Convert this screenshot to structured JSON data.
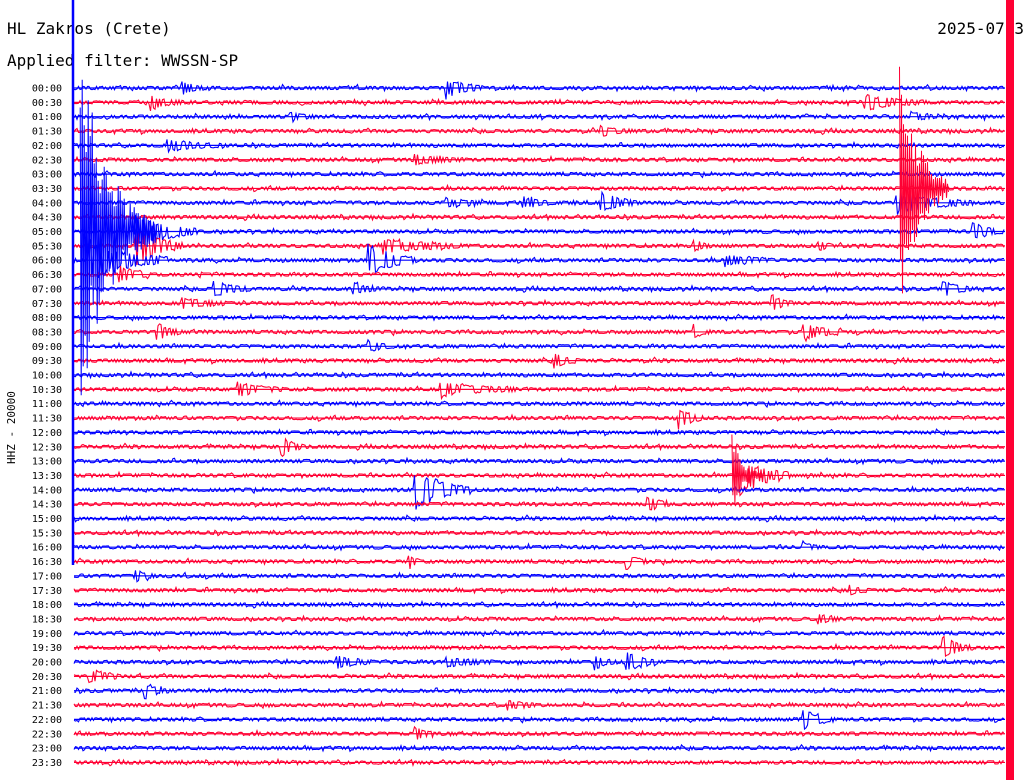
{
  "header": {
    "station": "HL Zakros (Crete)",
    "date": "2025-07-3",
    "filter": "Applied filter: WWSSN-SP"
  },
  "colors": {
    "trace_a": "#0000ff",
    "trace_b": "#ff0033",
    "text": "#000000",
    "background": "#ffffff"
  },
  "chart_data": {
    "type": "line",
    "title": "HL Zakros (Crete)",
    "xlabel": "",
    "ylabel": "HHZ - 20000",
    "grid": false,
    "legend": "none",
    "row_labels": [
      "00:00",
      "00:30",
      "01:00",
      "01:30",
      "02:00",
      "02:30",
      "03:00",
      "03:30",
      "04:00",
      "04:30",
      "05:00",
      "05:30",
      "06:00",
      "06:30",
      "07:00",
      "07:30",
      "08:00",
      "08:30",
      "09:00",
      "09:30",
      "10:00",
      "10:30",
      "11:00",
      "11:30",
      "12:00",
      "12:30",
      "13:00",
      "13:30",
      "14:00",
      "14:30",
      "15:00",
      "15:30",
      "16:00",
      "16:30",
      "17:00",
      "17:30",
      "18:00",
      "18:30",
      "19:00",
      "19:30",
      "20:00",
      "20:30",
      "21:00",
      "21:30",
      "22:00",
      "22:30",
      "23:00",
      "23:30"
    ],
    "row_colors": [
      "blue",
      "red"
    ],
    "minutes_per_row": 30,
    "events": [
      {
        "row": 0,
        "minute": 12,
        "amp": 1.2,
        "dur": 1.2
      },
      {
        "row": 0,
        "minute": 3.5,
        "amp": 0.6,
        "dur": 0.8
      },
      {
        "row": 1,
        "minute": 2.5,
        "amp": 0.7,
        "dur": 1.0
      },
      {
        "row": 1,
        "minute": 25.5,
        "amp": 0.9,
        "dur": 2.0
      },
      {
        "row": 2,
        "minute": 7,
        "amp": 0.5,
        "dur": 0.8
      },
      {
        "row": 2,
        "minute": 27,
        "amp": 0.6,
        "dur": 0.7
      },
      {
        "row": 3,
        "minute": 17,
        "amp": 0.5,
        "dur": 1.0
      },
      {
        "row": 4,
        "minute": 3,
        "amp": 0.6,
        "dur": 2.0
      },
      {
        "row": 5,
        "minute": 11,
        "amp": 0.5,
        "dur": 1.5
      },
      {
        "row": 8,
        "minute": 17,
        "amp": 1.2,
        "dur": 1.2
      },
      {
        "row": 8,
        "minute": 14.5,
        "amp": 0.6,
        "dur": 1.0
      },
      {
        "row": 8,
        "minute": 12,
        "amp": 0.5,
        "dur": 1.2
      },
      {
        "row": 8,
        "minute": 26.5,
        "amp": 1.3,
        "dur": 2.5
      },
      {
        "row": 10,
        "minute": 29,
        "amp": 0.9,
        "dur": 1.0
      },
      {
        "row": 10,
        "minute": 2,
        "amp": 2.2,
        "dur": 2.0
      },
      {
        "row": 11,
        "minute": 10,
        "amp": 0.9,
        "dur": 2.5
      },
      {
        "row": 11,
        "minute": 2,
        "amp": 2.5,
        "dur": 1.5
      },
      {
        "row": 11,
        "minute": 20,
        "amp": 0.6,
        "dur": 0.5
      },
      {
        "row": 11,
        "minute": 24,
        "amp": 0.5,
        "dur": 0.5
      },
      {
        "row": 12,
        "minute": 9.5,
        "amp": 2.0,
        "dur": 1.5
      },
      {
        "row": 12,
        "minute": 0.5,
        "amp": 2.5,
        "dur": 2.5
      },
      {
        "row": 12,
        "minute": 21,
        "amp": 0.6,
        "dur": 1.5
      },
      {
        "row": 13,
        "minute": 1.5,
        "amp": 1.0,
        "dur": 1.0
      },
      {
        "row": 14,
        "minute": 4.5,
        "amp": 1.0,
        "dur": 1.2
      },
      {
        "row": 14,
        "minute": 9,
        "amp": 0.6,
        "dur": 1.0
      },
      {
        "row": 14,
        "minute": 28,
        "amp": 0.9,
        "dur": 1.0
      },
      {
        "row": 15,
        "minute": 22.5,
        "amp": 0.9,
        "dur": 0.7
      },
      {
        "row": 15,
        "minute": 3.5,
        "amp": 0.6,
        "dur": 1.5
      },
      {
        "row": 17,
        "minute": 2.7,
        "amp": 0.9,
        "dur": 0.8
      },
      {
        "row": 17,
        "minute": 23.5,
        "amp": 1.0,
        "dur": 1.2
      },
      {
        "row": 17,
        "minute": 20,
        "amp": 0.6,
        "dur": 0.5
      },
      {
        "row": 18,
        "minute": 9.5,
        "amp": 0.6,
        "dur": 0.8
      },
      {
        "row": 19,
        "minute": 15.5,
        "amp": 0.8,
        "dur": 0.8
      },
      {
        "row": 21,
        "minute": 5.3,
        "amp": 0.8,
        "dur": 1.5
      },
      {
        "row": 21,
        "minute": 11.8,
        "amp": 0.8,
        "dur": 2.5
      },
      {
        "row": 23,
        "minute": 19.5,
        "amp": 1.1,
        "dur": 0.8
      },
      {
        "row": 25,
        "minute": 6.7,
        "amp": 1.1,
        "dur": 0.7
      },
      {
        "row": 28,
        "minute": 11,
        "amp": 2.4,
        "dur": 1.8
      },
      {
        "row": 27,
        "minute": 21.5,
        "amp": 2.3,
        "dur": 1.6
      },
      {
        "row": 29,
        "minute": 18.5,
        "amp": 0.9,
        "dur": 0.7
      },
      {
        "row": 32,
        "minute": 23.5,
        "amp": 0.6,
        "dur": 0.5
      },
      {
        "row": 33,
        "minute": 17.8,
        "amp": 0.9,
        "dur": 0.7
      },
      {
        "row": 33,
        "minute": 10.8,
        "amp": 0.8,
        "dur": 0.4
      },
      {
        "row": 34,
        "minute": 2,
        "amp": 0.6,
        "dur": 0.7
      },
      {
        "row": 35,
        "minute": 25,
        "amp": 0.5,
        "dur": 0.7
      },
      {
        "row": 37,
        "minute": 24,
        "amp": 0.5,
        "dur": 0.7
      },
      {
        "row": 39,
        "minute": 28,
        "amp": 1.3,
        "dur": 1.0
      },
      {
        "row": 40,
        "minute": 17.8,
        "amp": 1.3,
        "dur": 1.0
      },
      {
        "row": 40,
        "minute": 16.8,
        "amp": 0.8,
        "dur": 0.7
      },
      {
        "row": 40,
        "minute": 8.5,
        "amp": 0.7,
        "dur": 1.2
      },
      {
        "row": 40,
        "minute": 12,
        "amp": 0.5,
        "dur": 1.5
      },
      {
        "row": 41,
        "minute": 0.5,
        "amp": 0.8,
        "dur": 1.0
      },
      {
        "row": 42,
        "minute": 2.3,
        "amp": 0.9,
        "dur": 0.7
      },
      {
        "row": 43,
        "minute": 14,
        "amp": 0.5,
        "dur": 1.0
      },
      {
        "row": 44,
        "minute": 23.5,
        "amp": 1.2,
        "dur": 1.0
      },
      {
        "row": 45,
        "minute": 11,
        "amp": 0.7,
        "dur": 0.6
      }
    ],
    "long_events": [
      {
        "row": 10,
        "minute": 0.2,
        "amp_rows": 13.0,
        "dur_minutes": 2.5
      },
      {
        "row": 7,
        "minute": 26.6,
        "amp_rows": 10.0,
        "dur_minutes": 1.6
      },
      {
        "row": 27,
        "minute": 21.2,
        "amp_rows": 3.0,
        "dur_minutes": 1.0
      }
    ],
    "ylim": [
      0,
      48
    ]
  }
}
